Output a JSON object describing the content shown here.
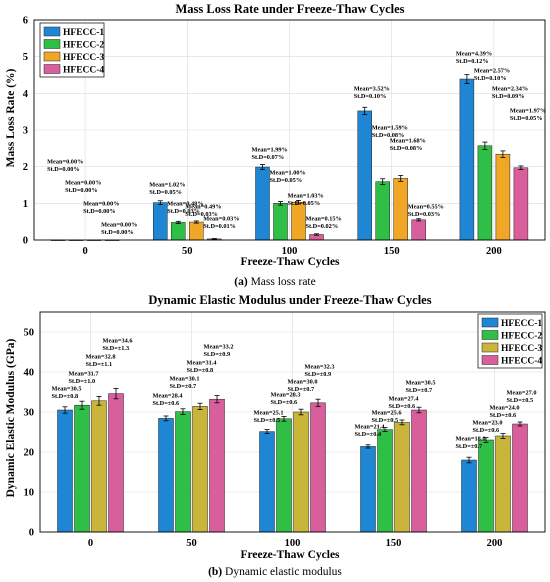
{
  "chart_data": [
    {
      "type": "bar",
      "title": "Mass Loss Rate under Freeze-Thaw Cycles",
      "xlabel": "Freeze-Thaw Cycles",
      "ylabel": "Mass Loss Rate (%)",
      "ylim": [
        0,
        6
      ],
      "yticks": [
        "0",
        "1",
        "2",
        "3",
        "4",
        "5",
        "6"
      ],
      "categories": [
        "0",
        "50",
        "100",
        "150",
        "200"
      ],
      "grid": true,
      "legend": "top-left",
      "caption_letter": "(a)",
      "caption_text": " Mass loss rate",
      "series": [
        {
          "name": "HFECC-1",
          "color": "#1f86d4",
          "values": [
            0.0,
            1.02,
            1.99,
            3.52,
            4.39
          ],
          "errors": [
            0.0,
            0.05,
            0.07,
            0.1,
            0.12
          ],
          "labels": [
            [
              "Mean=0.00%",
              "St.D=0.00%"
            ],
            [
              "Mean=1.02%",
              "St.D=0.05%"
            ],
            [
              "Mean=1.99%",
              "St.D=0.07%"
            ],
            [
              "Mean=3.52%",
              "St.D=0.10%"
            ],
            [
              "Mean=4.39%",
              "St.D=0.12%"
            ]
          ]
        },
        {
          "name": "HFECC-2",
          "color": "#2fbf46",
          "values": [
            0.0,
            0.48,
            1.0,
            1.59,
            2.57
          ],
          "errors": [
            0.0,
            0.03,
            0.05,
            0.08,
            0.1
          ],
          "labels": [
            [
              "Mean=0.00%",
              "St.D=0.00%"
            ],
            [
              "Mean=0.48%",
              "St.D=0.03%"
            ],
            [
              "Mean=1.00%",
              "St.D=0.05%"
            ],
            [
              "Mean=1.59%",
              "St.D=0.08%"
            ],
            [
              "Mean=2.57%",
              "St.D=0.10%"
            ]
          ]
        },
        {
          "name": "HFECC-3",
          "color": "#f0a627",
          "values": [
            0.0,
            0.49,
            1.03,
            1.68,
            2.34
          ],
          "errors": [
            0.0,
            0.03,
            0.05,
            0.08,
            0.09
          ],
          "labels": [
            [
              "Mean=0.00%",
              "St.D=0.00%"
            ],
            [
              "Mean=0.49%",
              "St.D=0.03%"
            ],
            [
              "Mean=1.03%",
              "St.D=0.05%"
            ],
            [
              "Mean=1.68%",
              "St.D=0.08%"
            ],
            [
              "Mean=2.34%",
              "St.D=0.09%"
            ]
          ]
        },
        {
          "name": "HFECC-4",
          "color": "#d95f9c",
          "values": [
            0.0,
            0.03,
            0.15,
            0.55,
            1.97
          ],
          "errors": [
            0.0,
            0.01,
            0.02,
            0.03,
            0.05
          ],
          "labels": [
            [
              "Mean=0.00%",
              "St.D=0.00%"
            ],
            [
              "Mean=0.03%",
              "St.D=0.01%"
            ],
            [
              "Mean=0.15%",
              "St.D=0.02%"
            ],
            [
              "Mean=0.55%",
              "St.D=0.03%"
            ],
            [
              "Mean=1.97%",
              "St.D=0.05%"
            ]
          ]
        }
      ]
    },
    {
      "type": "bar",
      "title": "Dynamic Elastic Modulus under Freeze-Thaw Cycles",
      "xlabel": "Freeze-Thaw Cycles",
      "ylabel": "Dynamic Elastic Modulus (GPa)",
      "ylim": [
        0,
        55
      ],
      "yticks": [
        "0",
        "10",
        "20",
        "30",
        "40",
        "50"
      ],
      "categories": [
        "0",
        "50",
        "100",
        "150",
        "200"
      ],
      "grid": true,
      "legend": "top-right",
      "caption_letter": "(b)",
      "caption_text": " Dynamic elastic modulus",
      "series": [
        {
          "name": "HFECC-1",
          "color": "#1f86d4",
          "values": [
            30.5,
            28.4,
            25.1,
            21.4,
            18.0
          ],
          "errors": [
            0.8,
            0.6,
            0.5,
            0.4,
            0.7
          ],
          "labels": [
            [
              "Mean=30.5",
              "St.D=±0.8"
            ],
            [
              "Mean=28.4",
              "St.D=±0.6"
            ],
            [
              "Mean=25.1",
              "St.D=±0.5"
            ],
            [
              "Mean=21.4",
              "St.D=±0.4"
            ],
            [
              "Mean=18.0",
              "St.D=±0.7"
            ]
          ]
        },
        {
          "name": "HFECC-2",
          "color": "#2fbf46",
          "values": [
            31.7,
            30.1,
            28.3,
            25.6,
            23.0
          ],
          "errors": [
            1.0,
            0.7,
            0.6,
            0.5,
            0.6
          ],
          "labels": [
            [
              "Mean=31.7",
              "St.D=±1.0"
            ],
            [
              "Mean=30.1",
              "St.D=±0.7"
            ],
            [
              "Mean=28.3",
              "St.D=±0.6"
            ],
            [
              "Mean=25.6",
              "St.D=±0.5"
            ],
            [
              "Mean=23.0",
              "St.D=±0.6"
            ]
          ]
        },
        {
          "name": "HFECC-3",
          "color": "#c9b53a",
          "values": [
            32.8,
            31.4,
            30.0,
            27.4,
            24.0
          ],
          "errors": [
            1.1,
            0.8,
            0.7,
            0.6,
            0.6
          ],
          "labels": [
            [
              "Mean=32.8",
              "St.D=±1.1"
            ],
            [
              "Mean=31.4",
              "St.D=±0.8"
            ],
            [
              "Mean=30.0",
              "St.D=±0.7"
            ],
            [
              "Mean=27.4",
              "St.D=±0.6"
            ],
            [
              "Mean=24.0",
              "St.D=±0.6"
            ]
          ]
        },
        {
          "name": "HFECC-4",
          "color": "#d95f9c",
          "values": [
            34.6,
            33.2,
            32.3,
            30.5,
            27.0
          ],
          "errors": [
            1.3,
            0.9,
            0.9,
            0.7,
            0.5
          ],
          "labels": [
            [
              "Mean=34.6",
              "St.D=±1.3"
            ],
            [
              "Mean=33.2",
              "St.D=±0.9"
            ],
            [
              "Mean=32.3",
              "St.D=±0.9"
            ],
            [
              "Mean=30.5",
              "St.D=±0.7"
            ],
            [
              "Mean=27.0",
              "St.D=±0.5"
            ]
          ]
        }
      ]
    }
  ]
}
